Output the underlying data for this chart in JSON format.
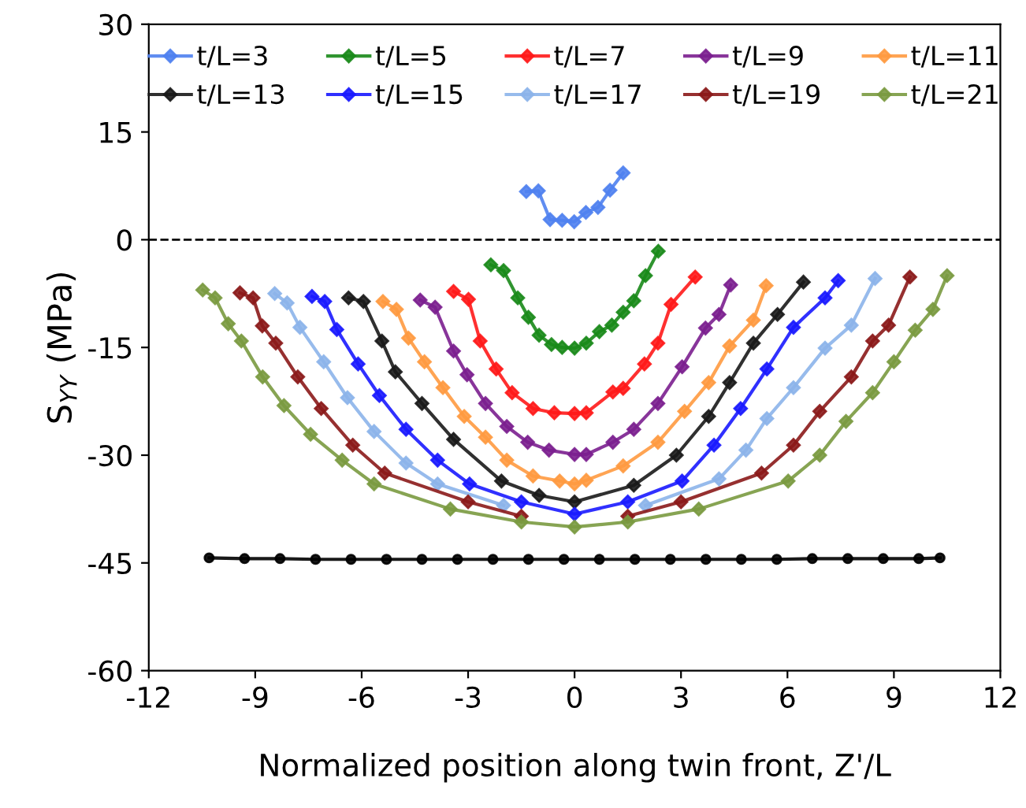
{
  "chart_data": {
    "type": "line",
    "xlabel": "Normalized position along twin front, Z'/L",
    "ylabel": "S$_{YY}$ (MPa)",
    "xlim": [
      -12,
      12
    ],
    "xticks": [
      -12,
      -9,
      -6,
      -3,
      0,
      3,
      6,
      9,
      12
    ],
    "ylim": [
      -60,
      30
    ],
    "yticks": [
      -60,
      -45,
      -30,
      -15,
      0,
      15,
      30
    ],
    "grid": false,
    "legend": "top",
    "marker": "diamond",
    "line_style": "solid",
    "ref_lines": [
      {
        "axis": "y",
        "value": 0,
        "color": "#000000",
        "line_style": "dashed"
      }
    ],
    "series": [
      {
        "name": "t/L=3",
        "color": "#4f81f0",
        "x": [
          -1.36,
          -1.02,
          -0.69,
          -0.35,
          -0.01,
          0.32,
          0.66,
          1.0,
          1.37
        ],
        "values": [
          6.7,
          6.8,
          2.8,
          2.7,
          2.5,
          3.8,
          4.5,
          6.9,
          9.3
        ]
      },
      {
        "name": "t/L=5",
        "color": "#1a8a1a",
        "x": [
          -2.36,
          -2.0,
          -1.6,
          -1.3,
          -1.0,
          -0.65,
          -0.35,
          0,
          0.33,
          0.7,
          1.05,
          1.37,
          1.67,
          2.0,
          2.36
        ],
        "values": [
          -3.5,
          -4.3,
          -8.1,
          -10.8,
          -13.3,
          -14.6,
          -15,
          -15.1,
          -14.4,
          -12.8,
          -11.9,
          -10.1,
          -8.5,
          -5,
          -1.6
        ]
      },
      {
        "name": "t/L=7",
        "color": "#ff1a1a",
        "x": [
          -3.41,
          -2.99,
          -2.66,
          -2.21,
          -1.76,
          -1.17,
          -0.57,
          0,
          0.33,
          1.08,
          1.37,
          1.97,
          2.35,
          2.72,
          3.4
        ],
        "values": [
          -7.2,
          -8.3,
          -14.1,
          -18.0,
          -21.3,
          -23.5,
          -24.1,
          -24.2,
          -24.1,
          -21.2,
          -20.7,
          -17.3,
          -14.4,
          -9,
          -5.2
        ]
      },
      {
        "name": "t/L=9",
        "color": "#7b1f8f",
        "x": [
          -4.35,
          -3.93,
          -3.41,
          -3.03,
          -2.51,
          -1.91,
          -1.32,
          -0.72,
          0,
          0.33,
          1.08,
          1.67,
          2.35,
          3.03,
          3.69,
          4.07,
          4.4
        ],
        "values": [
          -8.4,
          -9.4,
          -15.5,
          -18.8,
          -22.8,
          -26,
          -28.2,
          -29.3,
          -29.9,
          -29.9,
          -28.2,
          -26.4,
          -22.8,
          -17.7,
          -12.3,
          -10.4,
          -6.3
        ]
      },
      {
        "name": "t/L=11",
        "color": "#ff9a40",
        "x": [
          -5.4,
          -5.02,
          -4.68,
          -4.23,
          -3.71,
          -3.11,
          -2.51,
          -1.91,
          -1.17,
          -0.42,
          0,
          0.33,
          1.37,
          2.35,
          3.1,
          3.78,
          4.37,
          5.04,
          5.4
        ],
        "values": [
          -8.6,
          -9.7,
          -13.7,
          -17,
          -20.6,
          -24.6,
          -27.5,
          -30.7,
          -32.9,
          -33.6,
          -34,
          -33.5,
          -31.5,
          -28.2,
          -23.9,
          -19.9,
          -14.8,
          -11.2,
          -6.4
        ]
      },
      {
        "name": "t/L=13",
        "color": "#1a1a1a",
        "x": [
          -6.37,
          -5.95,
          -5.43,
          -5.05,
          -4.3,
          -3.41,
          -2.06,
          -1,
          0,
          1.67,
          2.87,
          3.78,
          4.37,
          5.04,
          5.72,
          6.45
        ],
        "values": [
          -8.1,
          -8.6,
          -14.1,
          -18.4,
          -22.8,
          -27.8,
          -33.6,
          -35.6,
          -36.5,
          -34.2,
          -30,
          -24.6,
          -19.9,
          -14.4,
          -10.4,
          -5.9
        ]
      },
      {
        "name": "t/L=15",
        "color": "#1a1aff",
        "x": [
          -7.4,
          -7.04,
          -6.7,
          -6.1,
          -5.5,
          -4.75,
          -3.86,
          -2.96,
          -1.5,
          0,
          1.5,
          3.03,
          3.93,
          4.68,
          5.42,
          6.17,
          7.06,
          7.43
        ],
        "values": [
          -7.9,
          -8.6,
          -12.5,
          -17.3,
          -21.7,
          -26.4,
          -30.7,
          -34,
          -36.5,
          -38.2,
          -36.5,
          -33.6,
          -28.6,
          -23.5,
          -18,
          -12.2,
          -8.1,
          -5.7
        ]
      },
      {
        "name": "t/L=17",
        "color": "#8cb4ea",
        "x": [
          -8.45,
          -8.1,
          -7.74,
          -7.07,
          -6.4,
          -5.65,
          -4.75,
          -3.86,
          -2,
          0,
          2,
          4.07,
          4.83,
          5.42,
          6.17,
          7.06,
          7.8,
          8.47
        ],
        "values": [
          -7.5,
          -8.8,
          -12.2,
          -17,
          -22,
          -26.7,
          -31.1,
          -34,
          -37,
          null,
          -37,
          -33.3,
          -29.3,
          -24.9,
          -20.6,
          -15.1,
          -11.9,
          -5.4
        ]
      },
      {
        "name": "t/L=19",
        "color": "#8b1a1a",
        "x": [
          -9.43,
          -9.06,
          -8.8,
          -8.42,
          -7.8,
          -7.14,
          -6.25,
          -5.35,
          -3,
          -1.5,
          0,
          1.5,
          3,
          5.27,
          6.17,
          6.91,
          7.8,
          8.4,
          8.85,
          9.45
        ],
        "values": [
          -7.4,
          -8.1,
          -12,
          -14.4,
          -19.1,
          -23.5,
          -28.6,
          -32.5,
          -36.5,
          -38.5,
          null,
          -38.5,
          -36.5,
          -32.5,
          -28.6,
          -23.9,
          -19.1,
          -14.1,
          -11.9,
          -5.2
        ]
      },
      {
        "name": "t/L=21",
        "color": "#7a9a40",
        "x": [
          -10.48,
          -10.13,
          -9.76,
          -9.39,
          -8.79,
          -8.19,
          -7.44,
          -6.55,
          -5.65,
          -3.5,
          -1.5,
          0,
          1.5,
          3.5,
          6.02,
          6.91,
          7.65,
          8.4,
          9.0,
          9.6,
          10.1,
          10.5
        ],
        "values": [
          -7,
          -8.1,
          -11.7,
          -14.1,
          -19.1,
          -23.1,
          -27.1,
          -30.7,
          -34,
          -37.5,
          -39.3,
          -40,
          -39.3,
          -37.5,
          -33.6,
          -30,
          -25.3,
          -21.3,
          -17,
          -12.6,
          -9.7,
          -5
        ]
      },
      {
        "color": "#000000",
        "marker": "circle",
        "x": [
          -10.3,
          -9.3,
          -8.3,
          -7.3,
          -6.3,
          -5.3,
          -4.3,
          -3.3,
          -2.3,
          -1.3,
          -0.3,
          0.7,
          1.7,
          2.7,
          3.7,
          4.7,
          5.7,
          6.7,
          7.7,
          8.7,
          9.7,
          10.3
        ],
        "values": [
          -44.3,
          -44.4,
          -44.4,
          -44.5,
          -44.5,
          -44.5,
          -44.5,
          -44.5,
          -44.5,
          -44.5,
          -44.5,
          -44.5,
          -44.5,
          -44.5,
          -44.5,
          -44.5,
          -44.5,
          -44.4,
          -44.4,
          -44.4,
          -44.4,
          -44.3
        ]
      }
    ]
  }
}
